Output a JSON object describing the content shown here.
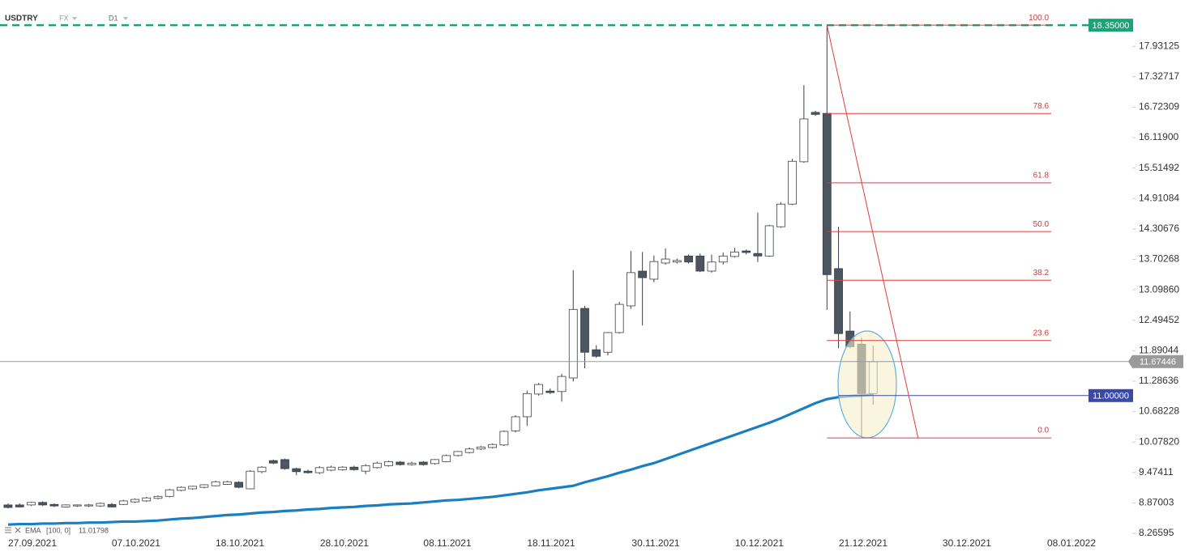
{
  "header": {
    "symbol": "USDTRY",
    "market": "FX",
    "timeframe": "D1"
  },
  "chart_data": {
    "type": "candlestick",
    "open": [
      8.83,
      8.83,
      8.83,
      8.88,
      8.84,
      8.79,
      8.81,
      8.81,
      8.81,
      8.84,
      8.84,
      8.89,
      8.91,
      8.96,
      9.0,
      9.12,
      9.15,
      9.18,
      9.21,
      9.24,
      9.28,
      9.15,
      9.49,
      9.71,
      9.73,
      9.55,
      9.5,
      9.47,
      9.52,
      9.53,
      9.58,
      9.5,
      9.57,
      9.61,
      9.68,
      9.63,
      9.68,
      9.65,
      9.69,
      9.81,
      9.87,
      9.94,
      9.97,
      10.02,
      10.3,
      10.58,
      11.03,
      11.09,
      11.08,
      11.35,
      12.73,
      11.91,
      11.86,
      12.25,
      12.78,
      13.47,
      13.31,
      13.63,
      13.65,
      13.77,
      13.77,
      13.47,
      13.65,
      13.76,
      13.87,
      13.82,
      13.77,
      14.35,
      14.8,
      15.64,
      16.62,
      16.6,
      13.52,
      12.28,
      12.02,
      11.04
    ],
    "high": [
      8.86,
      8.86,
      8.89,
      8.9,
      8.86,
      8.84,
      8.84,
      8.85,
      8.88,
      8.87,
      8.93,
      8.96,
      8.99,
      9.02,
      9.15,
      9.2,
      9.21,
      9.24,
      9.31,
      9.31,
      9.3,
      9.52,
      9.6,
      9.73,
      9.75,
      9.57,
      9.53,
      9.6,
      9.61,
      9.6,
      9.61,
      9.64,
      9.69,
      9.71,
      9.7,
      9.69,
      9.7,
      9.74,
      9.83,
      9.9,
      9.97,
      10.0,
      10.05,
      10.31,
      10.61,
      11.1,
      11.25,
      11.14,
      11.43,
      13.49,
      12.78,
      12.0,
      12.26,
      12.86,
      13.87,
      13.85,
      13.78,
      13.92,
      13.72,
      13.8,
      13.82,
      13.8,
      13.84,
      13.93,
      13.9,
      14.63,
      14.39,
      14.84,
      15.7,
      17.16,
      16.65,
      18.35,
      14.35,
      12.67,
      12.15,
      11.99
    ],
    "low": [
      8.76,
      8.78,
      8.81,
      8.81,
      8.79,
      8.78,
      8.79,
      8.79,
      8.79,
      8.78,
      8.83,
      8.87,
      8.89,
      8.94,
      8.98,
      9.1,
      9.13,
      9.16,
      9.2,
      9.23,
      9.16,
      9.14,
      9.46,
      9.64,
      9.53,
      9.42,
      9.45,
      9.44,
      9.5,
      9.51,
      9.51,
      9.44,
      9.55,
      9.59,
      9.61,
      9.61,
      9.61,
      9.63,
      9.68,
      9.79,
      9.85,
      9.92,
      9.95,
      10.0,
      10.27,
      10.4,
      11.0,
      11.03,
      10.88,
      11.28,
      11.54,
      11.75,
      11.8,
      12.23,
      12.72,
      12.39,
      13.25,
      13.6,
      13.62,
      13.62,
      13.45,
      13.44,
      13.6,
      13.74,
      13.8,
      13.65,
      13.75,
      14.33,
      14.78,
      15.62,
      16.55,
      12.7,
      11.94,
      11.94,
      10.18,
      10.82
    ],
    "close": [
      8.78,
      8.79,
      8.88,
      8.83,
      8.81,
      8.83,
      8.83,
      8.83,
      8.86,
      8.79,
      8.91,
      8.94,
      8.97,
      9.0,
      9.13,
      9.18,
      9.2,
      9.23,
      9.29,
      9.29,
      9.18,
      9.5,
      9.58,
      9.66,
      9.55,
      9.49,
      9.47,
      9.57,
      9.58,
      9.58,
      9.53,
      9.61,
      9.66,
      9.69,
      9.63,
      9.66,
      9.63,
      9.73,
      9.81,
      9.89,
      9.94,
      9.98,
      10.03,
      10.29,
      10.58,
      11.04,
      11.22,
      11.06,
      11.38,
      12.71,
      11.86,
      11.78,
      12.25,
      12.81,
      13.44,
      13.34,
      13.66,
      13.71,
      13.68,
      13.65,
      13.47,
      13.65,
      13.77,
      13.85,
      13.84,
      13.77,
      14.37,
      14.8,
      15.65,
      16.49,
      16.58,
      13.4,
      12.23,
      11.97,
      11.04,
      11.67
    ],
    "up_color": "#ffffff",
    "down_color": "#4b5661",
    "wick_color": "#3a3f45",
    "xlim": [
      -0.7,
      97.47
    ],
    "xticks": [
      {
        "value": 2.11,
        "label": "27.09.2021"
      },
      {
        "value": 11.1,
        "label": "07.10.2021"
      },
      {
        "value": 20.1,
        "label": "18.10.2021"
      },
      {
        "value": 29.16,
        "label": "28.10.2021"
      },
      {
        "value": 38.09,
        "label": "08.11.2021"
      },
      {
        "value": 47.08,
        "label": "18.11.2021"
      },
      {
        "value": 56.15,
        "label": "30.11.2021"
      },
      {
        "value": 65.14,
        "label": "10.12.2021"
      },
      {
        "value": 74.14,
        "label": "21.12.2021"
      },
      {
        "value": 83.13,
        "label": "30.12.2021"
      },
      {
        "value": 92.2,
        "label": "08.01.2022"
      }
    ],
    "ylim": [
      8.17,
      18.85
    ],
    "yticks": [
      8.26595,
      8.87003,
      9.47411,
      {
        "value": 10.0782,
        "label": "10.07820"
      },
      10.68228,
      11.28636,
      11.89044,
      12.49452,
      {
        "value": 13.0986,
        "label": "13.09860"
      },
      13.70268,
      14.30676,
      14.91084,
      15.51492,
      {
        "value": 16.119,
        "label": "16.11900"
      },
      16.72309,
      17.32717,
      17.93125
    ],
    "series": [
      {
        "name": "EMA",
        "params": "[100, 0]",
        "last": 11.01798,
        "color": "#1a7fc1",
        "values": [
          8.44,
          8.45,
          8.45,
          8.46,
          8.46,
          8.47,
          8.47,
          8.48,
          8.48,
          8.49,
          8.5,
          8.5,
          8.51,
          8.52,
          8.54,
          8.56,
          8.57,
          8.59,
          8.61,
          8.63,
          8.64,
          8.66,
          8.68,
          8.69,
          8.71,
          8.72,
          8.74,
          8.75,
          8.77,
          8.78,
          8.79,
          8.81,
          8.82,
          8.84,
          8.85,
          8.86,
          8.88,
          8.9,
          8.92,
          8.93,
          8.95,
          8.97,
          8.99,
          9.02,
          9.05,
          9.08,
          9.12,
          9.15,
          9.18,
          9.21,
          9.28,
          9.34,
          9.4,
          9.47,
          9.53,
          9.6,
          9.66,
          9.74,
          9.82,
          9.9,
          9.98,
          10.06,
          10.14,
          10.22,
          10.3,
          10.38,
          10.46,
          10.55,
          10.65,
          10.75,
          10.85,
          10.93,
          10.97,
          10.99,
          11.0,
          11.02
        ]
      }
    ],
    "price_lines": [
      {
        "value": 18.35,
        "label": "18.35000",
        "color": "#17a673",
        "dashed": true
      },
      {
        "value": 11.67446,
        "color": "#9a9a9a",
        "dashed": false
      },
      {
        "value": 11,
        "label": "11.00000",
        "color": "#3b48a6",
        "dashed": false,
        "from_x": 72
      }
    ],
    "fibonacci": {
      "high": 18.35,
      "low": 10.16,
      "x": [
        71,
        78.9
      ],
      "end_x": 90.45,
      "color": "#e03c3c",
      "levels": [
        {
          "value": 100,
          "label": "100.0"
        },
        78.6,
        61.8,
        {
          "value": 50,
          "label": "50.0"
        },
        38.2,
        23.6,
        {
          "value": 0,
          "label": "0.0"
        }
      ]
    }
  }
}
